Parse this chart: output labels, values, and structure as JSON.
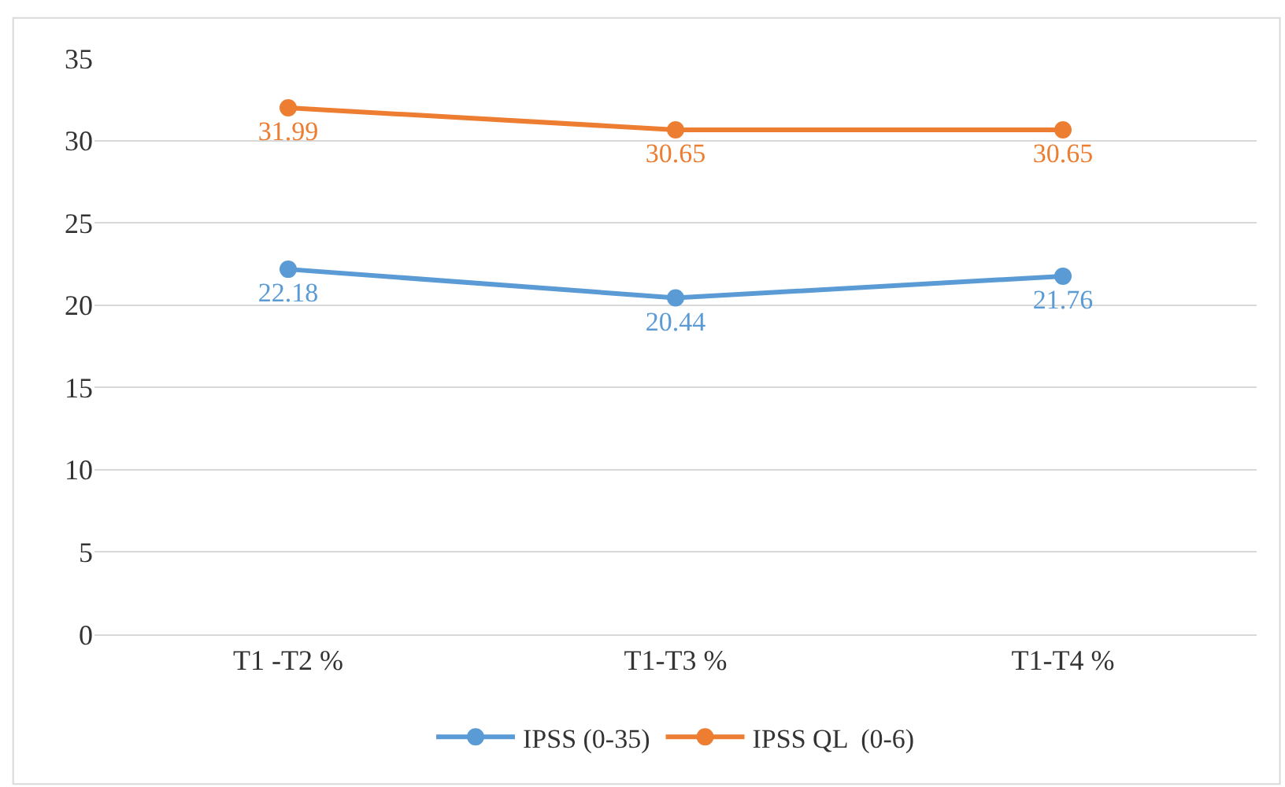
{
  "chart_data": {
    "type": "line",
    "categories": [
      "T1 -T2 %",
      "T1-T3 %",
      "T1-T4 %"
    ],
    "series": [
      {
        "name": "IPSS (0-35)",
        "color": "#5b9bd5",
        "values": [
          22.18,
          20.44,
          21.76
        ]
      },
      {
        "name": "IPSS QL  (0-6)",
        "color": "#ed7d31",
        "values": [
          31.99,
          30.65,
          30.65
        ]
      }
    ],
    "ylim": [
      0,
      35
    ],
    "yticks": [
      0,
      5,
      10,
      15,
      20,
      25,
      30,
      35
    ],
    "grid": "y",
    "legend": "bottom",
    "marker": "circle",
    "line_style": "solid",
    "data_labels": true
  }
}
